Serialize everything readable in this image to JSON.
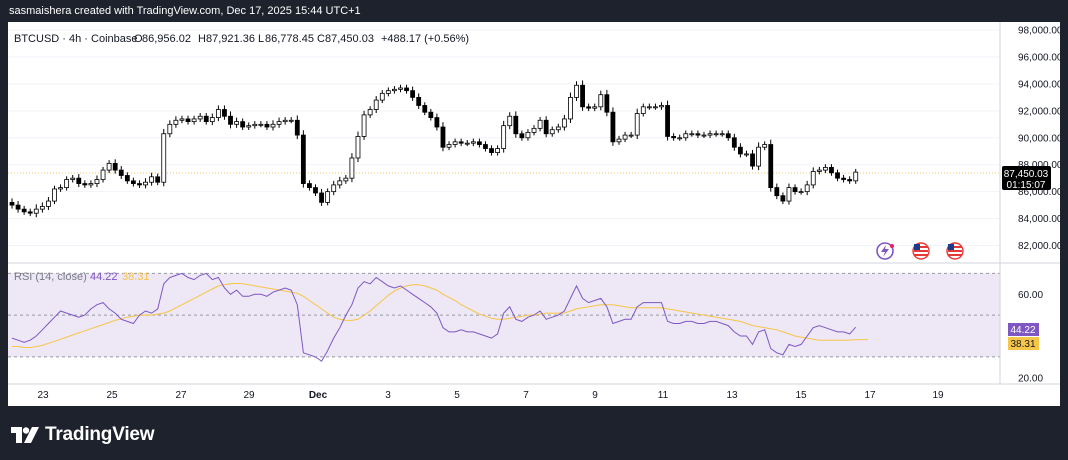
{
  "header": {
    "attribution": "sasmaishera created with TradingView.com, Dec 17, 2025 15:44 UTC+1"
  },
  "legend": {
    "symbol": "BTCUSD · 4h · Coinbase",
    "o_label": "O",
    "o_value": "86,956.02",
    "h_label": "H",
    "h_value": "87,921.36",
    "l_label": "L",
    "l_value": "86,778.45",
    "c_label": "C",
    "c_value": "87,450.03",
    "change": "+488.17 (+0.56%)"
  },
  "price_badge": {
    "price": "87,450.03",
    "countdown": "01:15:07"
  },
  "rsi_legend": {
    "label": "RSI (14, close)",
    "rsi_value": "44.22",
    "ma_value": "38.31"
  },
  "rsi_badges": {
    "rsi": "44.22",
    "ma": "38.31"
  },
  "footer": {
    "brand": "TradingView"
  },
  "colors": {
    "up": "#ffffff",
    "down": "#000000",
    "candle_border": "#000000",
    "rsi_line": "#7e57c2",
    "rsi_ma": "#f7c547",
    "rsi_band_fill": "#ede7f6",
    "background": "#1e222d"
  },
  "icons": [
    "flash-event-icon",
    "us-flag-icon",
    "us-flag-icon"
  ],
  "chart_data": [
    {
      "type": "candlestick",
      "title": "BTCUSD · 4h · Coinbase",
      "x_ticks": [
        "23",
        "25",
        "27",
        "29",
        "Dec",
        "3",
        "5",
        "7",
        "9",
        "11",
        "13",
        "15",
        "17",
        "19"
      ],
      "y_ticks": [
        "82,000.00",
        "84,000.00",
        "86,000.00",
        "88,000.00",
        "90,000.00",
        "92,000.00",
        "94,000.00",
        "96,000.00",
        "98,000.00"
      ],
      "ylim": [
        80700,
        98600
      ],
      "last_price": 87450.03,
      "closes": [
        85000,
        84700,
        84500,
        84400,
        84700,
        84900,
        85300,
        86200,
        86300,
        86900,
        87000,
        86600,
        86500,
        86600,
        86900,
        87600,
        88100,
        87600,
        87200,
        86800,
        86600,
        86500,
        86700,
        87100,
        86700,
        90300,
        91000,
        91300,
        91400,
        91200,
        91400,
        91600,
        91200,
        91500,
        92100,
        91600,
        91000,
        91200,
        90800,
        90900,
        91000,
        91000,
        90800,
        91000,
        91200,
        91300,
        91300,
        90200,
        86600,
        86300,
        85900,
        85200,
        86000,
        86500,
        86800,
        87000,
        88500,
        90100,
        91700,
        92100,
        92800,
        93300,
        93500,
        93600,
        93700,
        93500,
        93000,
        92400,
        91900,
        91500,
        90800,
        89300,
        89500,
        89700,
        89600,
        89600,
        89700,
        89500,
        89200,
        88900,
        89200,
        90900,
        91600,
        90300,
        90000,
        90400,
        90700,
        91300,
        90300,
        90600,
        90800,
        91400,
        93000,
        93900,
        92300,
        92200,
        92300,
        93200,
        91900,
        89700,
        89900,
        90200,
        90200,
        91800,
        92300,
        92300,
        92300,
        92400,
        90100,
        90000,
        90000,
        90300,
        90300,
        90200,
        90200,
        90300,
        90300,
        90300,
        90000,
        89300,
        88800,
        88800,
        87900,
        89300,
        89500,
        86300,
        85700,
        85300,
        86300,
        86000,
        86000,
        86500,
        87500,
        87600,
        87800,
        87400,
        87000,
        86900,
        86800,
        87450
      ],
      "candle_bias": [
        -2,
        -2,
        -1,
        -1,
        3,
        2,
        2,
        1,
        1,
        1,
        -1,
        -2,
        -1,
        1,
        2,
        1,
        1,
        -2,
        -2,
        -1,
        -1,
        -1,
        2,
        2,
        -1,
        3,
        2,
        2,
        1,
        -1,
        1,
        1,
        -1,
        2,
        2,
        -2,
        -3,
        2,
        -1,
        1,
        1,
        -1,
        -1,
        2,
        2,
        1,
        -1,
        -3,
        -3,
        -1,
        -1,
        -2,
        1,
        2,
        2,
        1,
        3,
        3,
        2,
        1,
        2,
        1,
        1,
        1,
        1,
        -1,
        -2,
        -2,
        -1,
        -1,
        -2,
        -3,
        1,
        1,
        -1,
        1,
        1,
        -1,
        -1,
        -1,
        1,
        3,
        2,
        -3,
        -1,
        1,
        1,
        1,
        -2,
        1,
        1,
        2,
        3,
        2,
        -3,
        -1,
        1,
        2,
        -3,
        -3,
        1,
        1,
        1,
        3,
        1,
        -1,
        1,
        1,
        -3,
        -1,
        1,
        1,
        1,
        -1,
        1,
        1,
        1,
        1,
        -1,
        -2,
        -2,
        1,
        -2,
        3,
        1,
        -3,
        -2,
        -1,
        2,
        -1,
        1,
        2,
        2,
        1,
        1,
        -1,
        -1,
        -1,
        -1,
        1
      ]
    },
    {
      "type": "line",
      "title": "RSI (14, close)",
      "y_ticks": [
        "20.00",
        "60.00"
      ],
      "band": [
        30,
        70
      ],
      "midline": 50,
      "ylim": [
        18,
        74
      ],
      "series": [
        {
          "name": "RSI (14, close)",
          "last_value": 44.22,
          "values": [
            39,
            38,
            37,
            38,
            40,
            43,
            46,
            49,
            52,
            51,
            50,
            49,
            50,
            53,
            55,
            56,
            53,
            51,
            48,
            47,
            46,
            50,
            52,
            51,
            53,
            65,
            68,
            69,
            70,
            68,
            67,
            69,
            70,
            67,
            68,
            63,
            60,
            62,
            59,
            59,
            60,
            60,
            59,
            61,
            62,
            63,
            62,
            55,
            32,
            31,
            30,
            28,
            33,
            39,
            44,
            50,
            55,
            63,
            66,
            65,
            68,
            66,
            64,
            63,
            64,
            62,
            60,
            58,
            56,
            54,
            51,
            44,
            42,
            42,
            43,
            42,
            42,
            41,
            40,
            39,
            41,
            51,
            54,
            48,
            47,
            49,
            50,
            52,
            48,
            49,
            50,
            52,
            58,
            64,
            58,
            56,
            57,
            58,
            54,
            46,
            47,
            48,
            48,
            54,
            56,
            56,
            56,
            56,
            47,
            46,
            46,
            47,
            47,
            46,
            46,
            47,
            47,
            46,
            45,
            42,
            40,
            40,
            36,
            42,
            43,
            34,
            32,
            31,
            36,
            35,
            36,
            40,
            44,
            45,
            44,
            43,
            42,
            42,
            41,
            44.22
          ]
        },
        {
          "name": "RSI MA",
          "last_value": 38.31,
          "values": [
            35,
            35,
            34.5,
            34.5,
            35,
            35.5,
            36.5,
            37.5,
            38.5,
            39.5,
            40.5,
            41.5,
            42.5,
            43.5,
            44.5,
            45.5,
            46.5,
            47.5,
            48.3,
            49,
            49.5,
            50,
            50,
            50,
            50.5,
            51,
            52,
            53.5,
            55,
            56.5,
            58,
            59.5,
            61,
            62.5,
            64,
            64.5,
            65,
            65.2,
            65,
            64.5,
            64,
            63.5,
            63,
            62.5,
            62,
            61.5,
            61,
            60.5,
            59,
            57,
            55,
            53,
            51,
            49,
            48,
            47.5,
            47.5,
            48,
            50,
            52,
            54.5,
            57,
            59.5,
            61.5,
            63,
            64,
            64.5,
            64.5,
            64,
            63,
            62,
            60,
            58.5,
            57,
            55,
            53.5,
            52,
            50.5,
            49.5,
            48.5,
            48,
            48,
            48.5,
            49,
            49.5,
            50,
            50,
            50.5,
            51,
            51,
            51,
            51,
            52,
            53,
            53.5,
            54,
            54.5,
            55,
            55,
            55,
            54.5,
            54,
            53.5,
            53.5,
            53.5,
            53.5,
            53.5,
            53.5,
            53,
            52.5,
            52,
            51.5,
            51,
            50.5,
            50,
            49.5,
            49,
            48.5,
            48,
            47.5,
            47,
            46,
            45,
            44.5,
            44,
            43.5,
            43,
            42,
            41,
            40,
            39.5,
            39,
            38.5,
            38,
            38,
            38,
            38,
            38,
            38.1,
            38.2,
            38.3,
            38.31
          ]
        }
      ]
    }
  ]
}
